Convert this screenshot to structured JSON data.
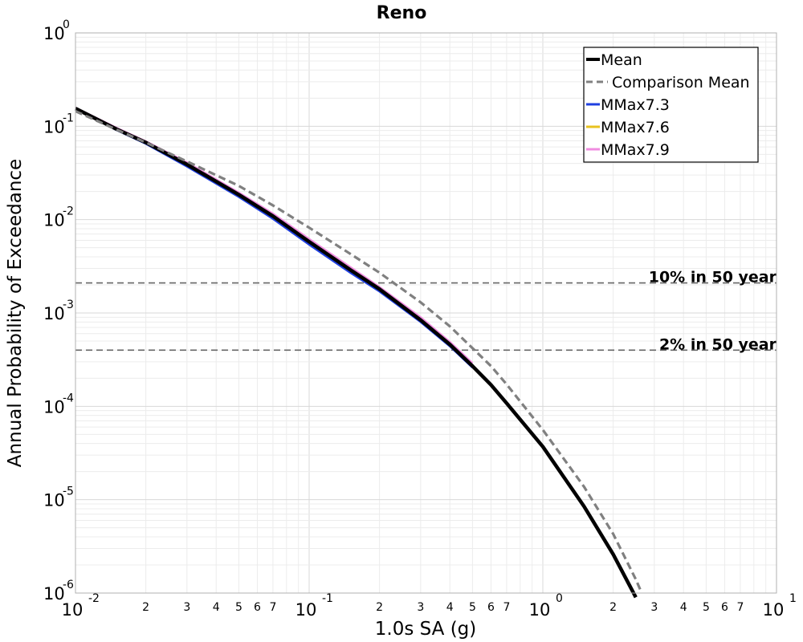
{
  "chart_data": {
    "type": "line",
    "title": "Reno",
    "xlabel": "1.0s SA (g)",
    "ylabel": "Annual Probability of Exceedance",
    "xscale": "log",
    "yscale": "log",
    "xlim": [
      0.01,
      10
    ],
    "ylim": [
      1e-06,
      1
    ],
    "grid": true,
    "legend_position": "top-right",
    "x_major_ticks": [
      {
        "value": 0.01,
        "base": "10",
        "exp": "-2"
      },
      {
        "value": 0.1,
        "base": "10",
        "exp": "-1"
      },
      {
        "value": 1,
        "base": "10",
        "exp": "0"
      },
      {
        "value": 10,
        "base": "10",
        "exp": "1"
      }
    ],
    "y_major_ticks": [
      {
        "value": 1,
        "base": "10",
        "exp": "0"
      },
      {
        "value": 0.1,
        "base": "10",
        "exp": "-1"
      },
      {
        "value": 0.01,
        "base": "10",
        "exp": "-2"
      },
      {
        "value": 0.001,
        "base": "10",
        "exp": "-3"
      },
      {
        "value": 0.0001,
        "base": "10",
        "exp": "-4"
      },
      {
        "value": 1e-05,
        "base": "10",
        "exp": "-5"
      },
      {
        "value": 1e-06,
        "base": "10",
        "exp": "-6"
      }
    ],
    "x_minor_tick_labels": [
      "2",
      "3",
      "4",
      "5",
      "6",
      "7"
    ],
    "reference_lines": [
      {
        "label": "10% in 50 year",
        "y": 0.0021
      },
      {
        "label": "2% in 50 year",
        "y": 0.0004
      }
    ],
    "series": [
      {
        "name": "Mean",
        "color": "#000000",
        "style": "solid",
        "x": [
          0.01,
          0.015,
          0.02,
          0.03,
          0.05,
          0.07,
          0.1,
          0.15,
          0.2,
          0.3,
          0.4,
          0.5,
          0.6,
          0.7,
          1.0,
          1.5,
          2.0,
          2.5
        ],
        "y": [
          0.155,
          0.093,
          0.067,
          0.039,
          0.0185,
          0.0109,
          0.0058,
          0.0029,
          0.0018,
          0.00084,
          0.00046,
          0.00027,
          0.00017,
          0.000108,
          3.7e-05,
          8.5e-06,
          2.6e-06,
          9e-07
        ]
      },
      {
        "name": "Comparison Mean",
        "color": "#808080",
        "style": "dashed",
        "x": [
          0.01,
          0.015,
          0.02,
          0.03,
          0.05,
          0.07,
          0.1,
          0.15,
          0.2,
          0.3,
          0.4,
          0.5,
          0.6,
          0.7,
          1.0,
          1.5,
          2.0,
          2.5,
          2.65
        ],
        "y": [
          0.145,
          0.092,
          0.067,
          0.042,
          0.023,
          0.0142,
          0.0082,
          0.0043,
          0.0027,
          0.0013,
          0.00072,
          0.00042,
          0.00027,
          0.000172,
          5.6e-05,
          1.38e-05,
          4.3e-06,
          1.4e-06,
          1e-06
        ]
      },
      {
        "name": "MMax7.3",
        "color": "#1f3fe0",
        "style": "solid",
        "x": [
          0.01,
          0.015,
          0.02,
          0.03,
          0.05,
          0.07,
          0.1,
          0.15,
          0.2,
          0.3,
          0.4,
          0.5
        ],
        "y": [
          0.153,
          0.091,
          0.065,
          0.037,
          0.0175,
          0.0102,
          0.0054,
          0.0027,
          0.0017,
          0.0008,
          0.00044,
          0.00026
        ]
      },
      {
        "name": "MMax7.6",
        "color": "#e8c21f",
        "style": "solid",
        "x": [
          0.01,
          0.015,
          0.02,
          0.03,
          0.05,
          0.07,
          0.1,
          0.15,
          0.2,
          0.3,
          0.4,
          0.5
        ],
        "y": [
          0.155,
          0.093,
          0.067,
          0.039,
          0.0185,
          0.0109,
          0.0058,
          0.0029,
          0.0018,
          0.00084,
          0.00046,
          0.00027
        ]
      },
      {
        "name": "MMax7.9",
        "color": "#f08ce0",
        "style": "solid",
        "x": [
          0.01,
          0.015,
          0.02,
          0.03,
          0.05,
          0.07,
          0.1,
          0.15,
          0.2,
          0.3,
          0.4,
          0.5
        ],
        "y": [
          0.158,
          0.096,
          0.069,
          0.041,
          0.0195,
          0.0116,
          0.0062,
          0.0031,
          0.0019,
          0.0009,
          0.00049,
          0.00029
        ]
      }
    ],
    "draw_order": [
      "MMax7.3",
      "MMax7.6",
      "MMax7.9",
      "Mean",
      "Comparison Mean"
    ]
  }
}
